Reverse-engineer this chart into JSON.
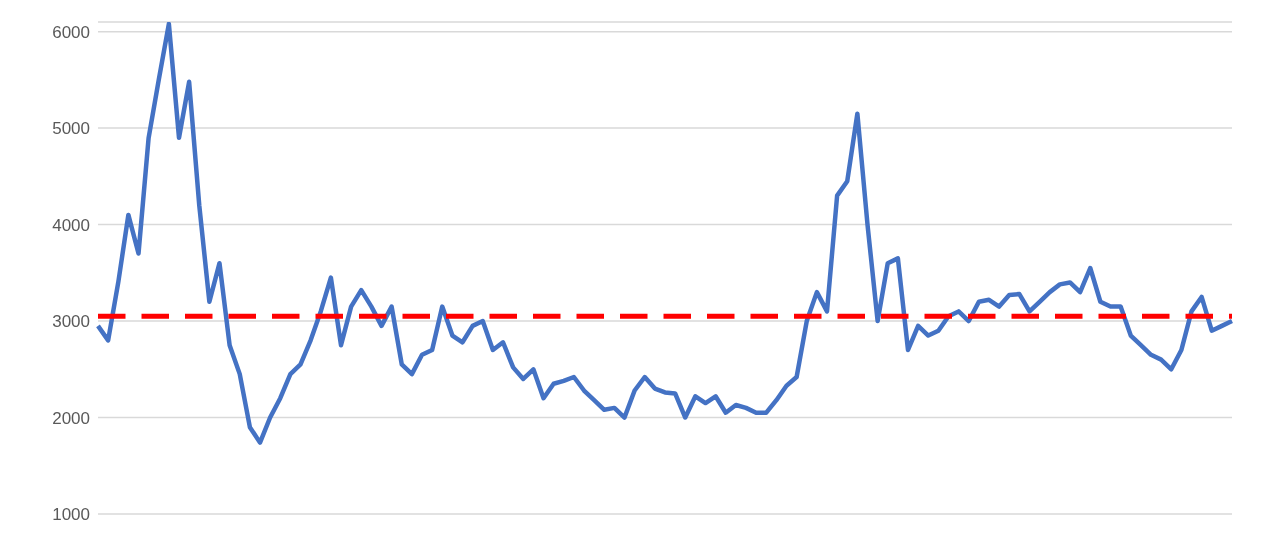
{
  "chart_data": {
    "type": "line",
    "categories": [
      null,
      null,
      null,
      null,
      null,
      null,
      null,
      null,
      null,
      null,
      null,
      null,
      null,
      null,
      null,
      null,
      null,
      null,
      null,
      null,
      null,
      null,
      null,
      null,
      null,
      null,
      null,
      null,
      null,
      null,
      null,
      null,
      null,
      null,
      null,
      null,
      null,
      null,
      null,
      null,
      null,
      null,
      null,
      null,
      null,
      null,
      null,
      null,
      null,
      null,
      null,
      null,
      null,
      null,
      null,
      null,
      null,
      null,
      null,
      null,
      null,
      null,
      null,
      null,
      null,
      null,
      null,
      null,
      null,
      null,
      null,
      null,
      null,
      null,
      null,
      null,
      null,
      null,
      null,
      null,
      null,
      null,
      null,
      null,
      null,
      null,
      null,
      null,
      null,
      null,
      null,
      null,
      null,
      null,
      null,
      null,
      null,
      null,
      null,
      null,
      null,
      null,
      null,
      null,
      null,
      null,
      null,
      null,
      null,
      null,
      null,
      null,
      null
    ],
    "series": [
      {
        "color": "#4472c4",
        "values": [
          2950,
          2800,
          3400,
          4100,
          3700,
          4900,
          5500,
          6080,
          4900,
          5480,
          4200,
          3200,
          3600,
          2750,
          2450,
          1900,
          1740,
          2000,
          2200,
          2450,
          2550,
          2800,
          3100,
          3450,
          2750,
          3150,
          3320,
          3150,
          2950,
          3150,
          2550,
          2450,
          2650,
          2700,
          3150,
          2850,
          2780,
          2950,
          3000,
          2700,
          2780,
          2520,
          2400,
          2500,
          2200,
          2350,
          2380,
          2420,
          2280,
          2180,
          2080,
          2100,
          2000,
          2280,
          2420,
          2300,
          2260,
          2250,
          2000,
          2220,
          2150,
          2220,
          2050,
          2130,
          2100,
          2050,
          2050,
          2180,
          2330,
          2420,
          3000,
          3300,
          3100,
          4300,
          4450,
          5150,
          4000,
          3000,
          3600,
          3650,
          2700,
          2950,
          2850,
          2900,
          3050,
          3100,
          3000,
          3200,
          3220,
          3150,
          3270,
          3280,
          3100,
          3200,
          3300,
          3380,
          3400,
          3300,
          3550,
          3200,
          3150,
          3150,
          2850,
          2750,
          2650,
          2600,
          2500,
          2700,
          3100,
          3250,
          2900,
          2950,
          3000
        ]
      }
    ],
    "ylim": [
      1000,
      6100
    ],
    "yticks": [
      1000,
      2000,
      3000,
      4000,
      5000,
      6000
    ],
    "grid": "y",
    "tick_labels": "y",
    "marker": "none",
    "line_style": "solid",
    "ref_lines": [
      {
        "axis": "y",
        "value": 3050,
        "color": "#ff0000",
        "line_style": "dashed"
      }
    ]
  }
}
